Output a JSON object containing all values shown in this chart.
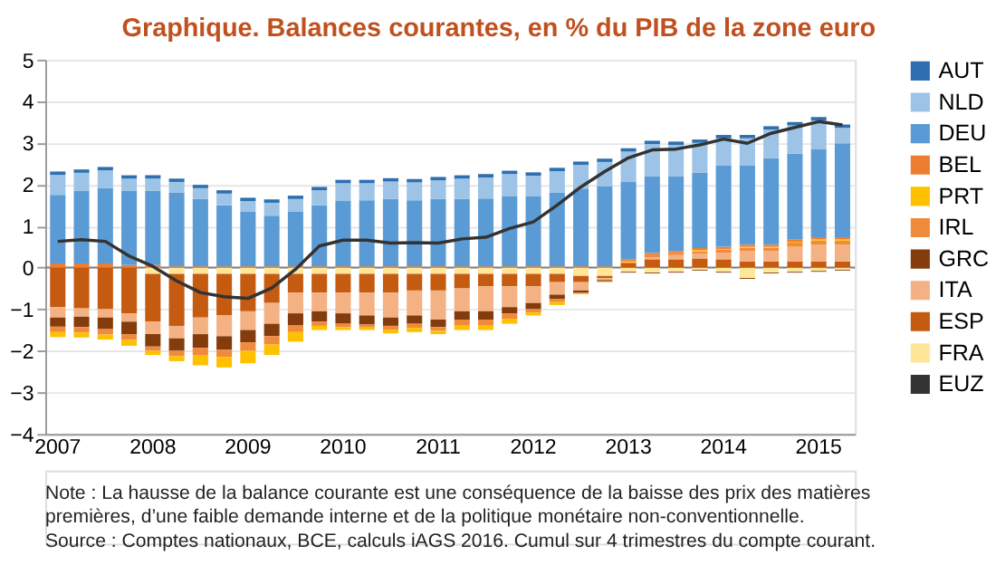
{
  "chart_data": {
    "type": "bar",
    "stacked": true,
    "title": "Graphique. Balances courantes, en % du PIB de la zone euro",
    "categories": [
      "2007",
      null,
      null,
      null,
      "2008",
      null,
      null,
      null,
      "2009",
      null,
      null,
      null,
      "2010",
      null,
      null,
      null,
      "2011",
      null,
      null,
      null,
      "2012",
      null,
      null,
      null,
      "2013",
      null,
      null,
      null,
      "2014",
      null,
      null,
      null,
      "2015",
      null
    ],
    "ylim": [
      -4,
      5
    ],
    "yticks": [
      -4,
      -3,
      -2,
      -1,
      0,
      1,
      2,
      3,
      4,
      5
    ],
    "grid": "y",
    "legend": "right",
    "ref_lines": [
      {
        "axis": "y",
        "value": 0,
        "color": "#808080"
      }
    ],
    "annotations": [
      "Note : La hausse de la balance courante est une conséquence de la baisse des prix des matières premières, d’une faible demande interne et de la politique monétaire non-conventionnelle.",
      "Source : Comptes nationaux, BCE, calculs iAGS 2016. Cumul sur 4 trimestres du compte courant."
    ],
    "series": [
      {
        "name": "FRA",
        "color": "#ffe699",
        "values": [
          null,
          null,
          null,
          null,
          -0.15,
          -0.15,
          -0.15,
          -0.15,
          -0.15,
          -0.15,
          -0.15,
          -0.15,
          -0.15,
          -0.15,
          -0.15,
          -0.15,
          -0.15,
          -0.15,
          -0.15,
          -0.15,
          -0.15,
          -0.15,
          -0.2,
          -0.2,
          -0.1,
          -0.12,
          -0.1,
          -0.05,
          -0.1,
          -0.25,
          -0.12,
          -0.1,
          -0.08,
          -0.05
        ]
      },
      {
        "name": "ESP",
        "color": "#c55a11",
        "values": [
          -0.95,
          -0.98,
          -1.0,
          -1.1,
          -1.15,
          -1.25,
          -1.05,
          -1.0,
          -0.9,
          -0.7,
          -0.45,
          -0.45,
          -0.45,
          -0.45,
          -0.45,
          -0.4,
          -0.4,
          -0.35,
          -0.3,
          -0.3,
          -0.3,
          -0.2,
          -0.15,
          -0.05,
          0.1,
          0.2,
          0.2,
          0.22,
          0.2,
          0.15,
          0.15,
          0.15,
          0.15,
          0.15
        ]
      },
      {
        "name": "ITA",
        "color": "#f4b183",
        "values": [
          -0.25,
          -0.2,
          -0.2,
          -0.2,
          -0.3,
          -0.3,
          -0.4,
          -0.5,
          -0.45,
          -0.5,
          -0.5,
          -0.45,
          -0.5,
          -0.55,
          -0.6,
          -0.6,
          -0.7,
          -0.55,
          -0.6,
          -0.5,
          -0.4,
          -0.3,
          -0.2,
          -0.05,
          0,
          0.05,
          0.1,
          0.12,
          0.15,
          0.25,
          0.25,
          0.35,
          0.4,
          0.4
        ]
      },
      {
        "name": "GRC",
        "color": "#843c0c",
        "values": [
          -0.22,
          -0.25,
          -0.28,
          -0.3,
          -0.3,
          -0.3,
          -0.33,
          -0.32,
          -0.3,
          -0.3,
          -0.28,
          -0.25,
          -0.25,
          -0.22,
          -0.2,
          -0.2,
          -0.18,
          -0.2,
          -0.2,
          -0.15,
          -0.15,
          -0.1,
          -0.05,
          -0.03,
          -0.02,
          -0.02,
          -0.02,
          -0.02,
          -0.02,
          -0.02,
          -0.02,
          -0.02,
          -0.02,
          -0.02
        ]
      },
      {
        "name": "IRL",
        "color": "#f08a3c",
        "values": [
          -0.13,
          -0.13,
          -0.13,
          -0.14,
          -0.1,
          -0.13,
          -0.17,
          -0.18,
          -0.2,
          -0.2,
          -0.17,
          -0.1,
          -0.08,
          -0.07,
          -0.09,
          -0.1,
          -0.09,
          -0.13,
          -0.13,
          -0.13,
          -0.08,
          -0.08,
          -0.02,
          -0.01,
          0.03,
          0.05,
          0.05,
          0.05,
          0.08,
          0.08,
          0.08,
          0.1,
          0.1,
          0.1
        ]
      },
      {
        "name": "PRT",
        "color": "#ffc000",
        "values": [
          -0.12,
          -0.12,
          -0.12,
          -0.14,
          -0.1,
          -0.12,
          -0.25,
          -0.25,
          -0.3,
          -0.25,
          -0.23,
          -0.1,
          -0.07,
          -0.06,
          -0.09,
          -0.1,
          -0.08,
          -0.12,
          -0.12,
          -0.12,
          -0.07,
          -0.07,
          -0.02,
          -0.01,
          0.02,
          0,
          0,
          0.03,
          0.02,
          0.02,
          0.02,
          0.02,
          0.03,
          0.03
        ]
      },
      {
        "name": "BEL",
        "color": "#ed7d31",
        "values": [
          0.1,
          0.1,
          0.1,
          0.06,
          0.06,
          0.03,
          0.03,
          0.03,
          0.03,
          0.03,
          0.03,
          0.03,
          0.03,
          0.03,
          0.03,
          0.03,
          0.03,
          0.03,
          0.03,
          0.03,
          0.03,
          0.03,
          0.03,
          0.03,
          0.05,
          0.05,
          0.05,
          0.05,
          0.05,
          0.05,
          0.05,
          0.05,
          0.05,
          0.05
        ]
      },
      {
        "name": "DEU",
        "color": "#5b9bd5",
        "values": [
          1.65,
          1.75,
          1.82,
          1.79,
          1.79,
          1.77,
          1.62,
          1.47,
          1.32,
          1.22,
          1.32,
          1.47,
          1.57,
          1.59,
          1.62,
          1.59,
          1.62,
          1.62,
          1.63,
          1.68,
          1.68,
          1.77,
          1.87,
          1.93,
          1.86,
          1.85,
          1.8,
          1.82,
          1.95,
          1.9,
          2.08,
          2.07,
          2.11,
          2.26
        ]
      },
      {
        "name": "NLD",
        "color": "#9dc3e6",
        "values": [
          0.48,
          0.43,
          0.42,
          0.29,
          0.29,
          0.26,
          0.26,
          0.28,
          0.25,
          0.31,
          0.3,
          0.36,
          0.43,
          0.41,
          0.42,
          0.43,
          0.45,
          0.49,
          0.51,
          0.54,
          0.5,
          0.52,
          0.57,
          0.58,
          0.73,
          0.77,
          0.75,
          0.71,
          0.66,
          0.66,
          0.69,
          0.68,
          0.7,
          0.37
        ]
      },
      {
        "name": "AUT",
        "color": "#2e6fb0",
        "values": [
          0.08,
          0.08,
          0.08,
          0.08,
          0.08,
          0.08,
          0.08,
          0.08,
          0.08,
          0.08,
          0.08,
          0.08,
          0.08,
          0.08,
          0.08,
          0.08,
          0.08,
          0.08,
          0.08,
          0.08,
          0.08,
          0.08,
          0.08,
          0.08,
          0.08,
          0.08,
          0.08,
          0.08,
          0.08,
          0.08,
          0.08,
          0.08,
          0.08,
          0.08
        ]
      },
      {
        "name": "EUZ",
        "type": "line",
        "color": "#333333",
        "values": [
          0.63,
          0.67,
          0.63,
          0.28,
          0.03,
          -0.32,
          -0.6,
          -0.7,
          -0.74,
          -0.49,
          -0.04,
          0.52,
          0.66,
          0.66,
          0.59,
          0.6,
          0.59,
          0.69,
          0.73,
          0.94,
          1.1,
          1.5,
          1.94,
          2.31,
          2.64,
          2.83,
          2.85,
          2.95,
          3.09,
          2.99,
          3.23,
          3.37,
          3.51,
          3.43
        ]
      }
    ]
  }
}
